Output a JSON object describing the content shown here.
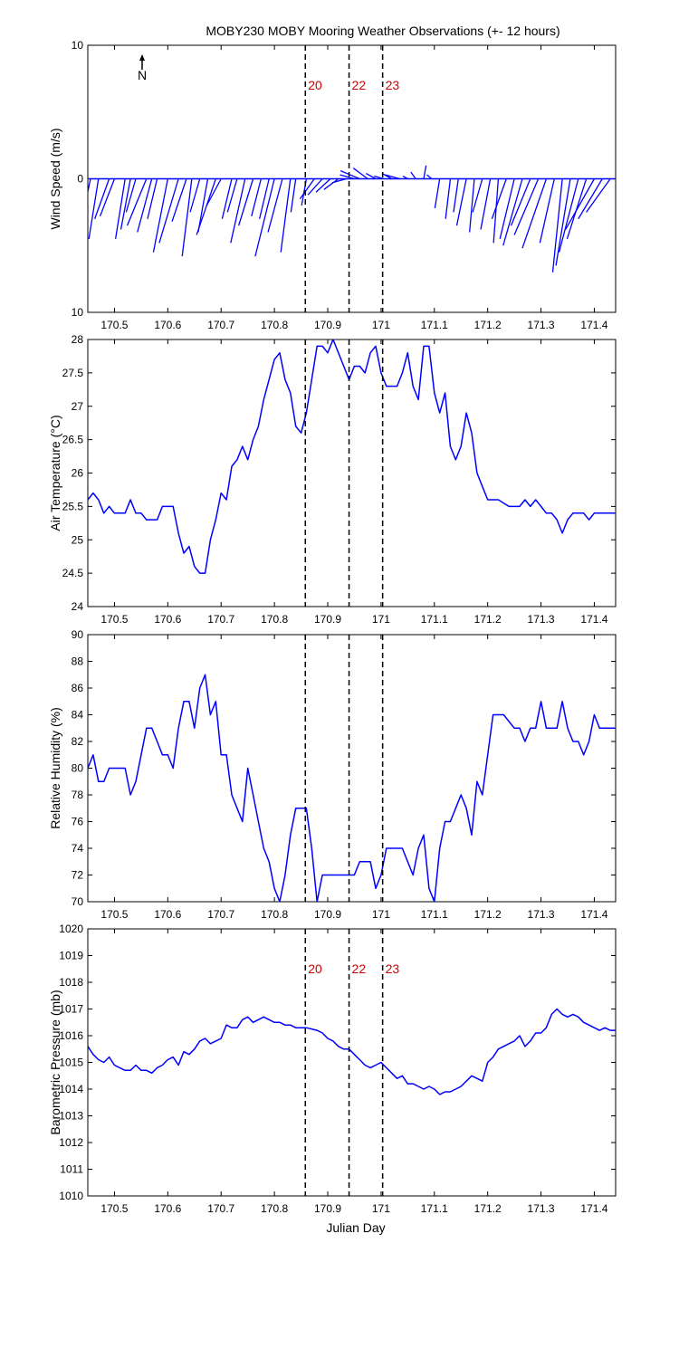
{
  "chart_data": {
    "title": "MOBY230 MOBY Mooring Weather Observations (+- 12 hours)",
    "xlabel": "Julian Day",
    "xlim": [
      170.45,
      171.44
    ],
    "xticks": [
      170.5,
      170.6,
      170.7,
      170.8,
      170.9,
      171,
      171.1,
      171.2,
      171.3,
      171.4
    ],
    "markers": [
      {
        "label": "20",
        "x": 170.858
      },
      {
        "label": "22",
        "x": 170.94
      },
      {
        "label": "23",
        "x": 171.003
      }
    ],
    "north_label": "N",
    "panels": [
      {
        "type": "quiver",
        "ylabel": "Wind Speed (m/s)",
        "ylim": [
          -10,
          10
        ],
        "yticks": [
          -10,
          0,
          10
        ],
        "ytick_labels": [
          "10",
          "0",
          "10"
        ],
        "show_markers": true,
        "series": [
          {
            "name": "",
            "color": "#0000ff",
            "x": [
              170.455,
              170.47,
              170.49,
              170.5,
              170.52,
              170.53,
              170.54,
              170.56,
              170.57,
              170.58,
              170.6,
              170.62,
              170.635,
              170.645,
              170.66,
              170.675,
              170.69,
              170.7,
              170.72,
              170.73,
              170.745,
              170.76,
              170.775,
              170.79,
              170.8,
              170.815,
              170.83,
              170.84,
              170.86,
              170.875,
              170.89,
              170.905,
              170.92,
              170.935,
              170.95,
              170.96,
              170.975,
              170.99,
              171.005,
              171.02,
              171.035,
              171.05,
              171.065,
              171.08,
              171.095,
              171.11,
              171.13,
              171.145,
              171.16,
              171.175,
              171.19,
              171.205,
              171.22,
              171.235,
              171.25,
              171.265,
              171.28,
              171.295,
              171.31,
              171.325,
              171.34,
              171.355,
              171.37,
              171.385,
              171.4,
              171.415,
              171.43
            ],
            "u": [
              -0.02,
              -0.02,
              -0.03,
              -0.03,
              -0.02,
              -0.02,
              -0.02,
              -0.04,
              -0.03,
              -0.02,
              -0.03,
              -0.04,
              -0.03,
              -0.02,
              -0.02,
              -0.02,
              -0.04,
              -0.03,
              -0.02,
              -0.02,
              -0.03,
              -0.03,
              -0.02,
              -0.02,
              -0.04,
              -0.03,
              -0.02,
              -0.01,
              -0.01,
              -0.03,
              -0.03,
              -0.03,
              -0.03,
              -0.03,
              -0.03,
              -0.04,
              -0.03,
              -0.02,
              -0.02,
              -0.02,
              -0.03,
              -0.01,
              -0.01,
              0.005,
              -0.01,
              -0.01,
              -0.01,
              -0.01,
              -0.02,
              -0.01,
              -0.02,
              -0.02,
              -0.01,
              -0.03,
              -0.03,
              -0.04,
              -0.04,
              -0.05,
              -0.05,
              -0.03,
              -0.02,
              -0.03,
              -0.04,
              -0.04,
              -0.06,
              -0.05,
              -0.05
            ],
            "v": [
              -3.5,
              -4.5,
              -3.0,
              -2.8,
              -4.5,
              -3.8,
              -2.5,
              -3.5,
              -4.0,
              -3.0,
              -5.5,
              -4.8,
              -3.2,
              -5.8,
              -2.5,
              -4.0,
              -4.2,
              -2.0,
              -3.0,
              -2.5,
              -4.8,
              -3.5,
              -2.8,
              -3.0,
              -5.8,
              -4.0,
              -5.5,
              -2.5,
              -2.0,
              -1.5,
              -1.2,
              -1.0,
              -0.8,
              -0.3,
              0.3,
              0.6,
              0.8,
              0.4,
              0.2,
              0.4,
              0.3,
              0.2,
              0.5,
              1.0,
              0.3,
              -2.2,
              -3.0,
              -2.5,
              -3.5,
              -4.0,
              -2.5,
              -3.8,
              -4.8,
              -3.0,
              -4.5,
              -5.0,
              -3.5,
              -4.2,
              -5.2,
              -4.8,
              -7.0,
              -6.5,
              -5.5,
              -4.5,
              -3.8,
              -3.0,
              -2.5
            ]
          }
        ]
      },
      {
        "type": "line",
        "ylabel": "Air Temperature (°C)",
        "ylim": [
          24,
          28
        ],
        "yticks": [
          24,
          24.5,
          25,
          25.5,
          26,
          26.5,
          27,
          27.5,
          28
        ],
        "show_markers": false,
        "series": [
          {
            "name": "",
            "color": "#0000ff",
            "x": [
              170.45,
              170.46,
              170.47,
              170.48,
              170.49,
              170.5,
              170.51,
              170.52,
              170.53,
              170.54,
              170.55,
              170.56,
              170.57,
              170.58,
              170.59,
              170.6,
              170.61,
              170.62,
              170.63,
              170.64,
              170.65,
              170.66,
              170.67,
              170.68,
              170.69,
              170.7,
              170.71,
              170.72,
              170.73,
              170.74,
              170.75,
              170.76,
              170.77,
              170.78,
              170.79,
              170.8,
              170.81,
              170.82,
              170.83,
              170.84,
              170.85,
              170.86,
              170.87,
              170.88,
              170.89,
              170.9,
              170.91,
              170.92,
              170.93,
              170.94,
              170.95,
              170.96,
              170.97,
              170.98,
              170.99,
              171,
              171.01,
              171.02,
              171.03,
              171.04,
              171.05,
              171.06,
              171.07,
              171.08,
              171.09,
              171.1,
              171.11,
              171.12,
              171.13,
              171.14,
              171.15,
              171.16,
              171.17,
              171.18,
              171.19,
              171.2,
              171.21,
              171.22,
              171.23,
              171.24,
              171.25,
              171.26,
              171.27,
              171.28,
              171.29,
              171.3,
              171.31,
              171.32,
              171.33,
              171.34,
              171.35,
              171.36,
              171.37,
              171.38,
              171.39,
              171.4,
              171.41,
              171.42,
              171.43,
              171.44
            ],
            "y": [
              25.6,
              25.7,
              25.6,
              25.4,
              25.5,
              25.4,
              25.4,
              25.4,
              25.6,
              25.4,
              25.4,
              25.3,
              25.3,
              25.3,
              25.5,
              25.5,
              25.5,
              25.1,
              24.8,
              24.9,
              24.6,
              24.5,
              24.5,
              25.0,
              25.3,
              25.7,
              25.6,
              26.1,
              26.2,
              26.4,
              26.2,
              26.5,
              26.7,
              27.1,
              27.4,
              27.7,
              27.8,
              27.4,
              27.2,
              26.7,
              26.6,
              26.9,
              27.4,
              27.9,
              27.9,
              27.8,
              28.0,
              27.8,
              27.6,
              27.4,
              27.6,
              27.6,
              27.5,
              27.8,
              27.9,
              27.5,
              27.3,
              27.3,
              27.3,
              27.5,
              27.8,
              27.3,
              27.1,
              27.9,
              27.9,
              27.2,
              26.9,
              27.2,
              26.4,
              26.2,
              26.4,
              26.9,
              26.6,
              26.0,
              25.8,
              25.6,
              25.6,
              25.6,
              25.55,
              25.5,
              25.5,
              25.5,
              25.6,
              25.5,
              25.6,
              25.5,
              25.4,
              25.4,
              25.3,
              25.1,
              25.3,
              25.4,
              25.4,
              25.4,
              25.3,
              25.4,
              25.4,
              25.4,
              25.4,
              25.4
            ]
          }
        ]
      },
      {
        "type": "line",
        "ylabel": "Relative Humidity (%)",
        "ylim": [
          70,
          90
        ],
        "yticks": [
          70,
          72,
          74,
          76,
          78,
          80,
          82,
          84,
          86,
          88,
          90
        ],
        "show_markers": false,
        "series": [
          {
            "name": "",
            "color": "#0000ff",
            "x": [
              170.45,
              170.46,
              170.47,
              170.48,
              170.49,
              170.5,
              170.51,
              170.52,
              170.53,
              170.54,
              170.55,
              170.56,
              170.57,
              170.58,
              170.59,
              170.6,
              170.61,
              170.62,
              170.63,
              170.64,
              170.65,
              170.66,
              170.67,
              170.68,
              170.69,
              170.7,
              170.71,
              170.72,
              170.73,
              170.74,
              170.75,
              170.76,
              170.77,
              170.78,
              170.79,
              170.8,
              170.81,
              170.82,
              170.83,
              170.84,
              170.85,
              170.86,
              170.87,
              170.88,
              170.89,
              170.9,
              170.91,
              170.92,
              170.93,
              170.94,
              170.95,
              170.96,
              170.97,
              170.98,
              170.99,
              171,
              171.01,
              171.02,
              171.03,
              171.04,
              171.05,
              171.06,
              171.07,
              171.08,
              171.09,
              171.1,
              171.11,
              171.12,
              171.13,
              171.14,
              171.15,
              171.16,
              171.17,
              171.18,
              171.19,
              171.2,
              171.21,
              171.22,
              171.23,
              171.24,
              171.25,
              171.26,
              171.27,
              171.28,
              171.29,
              171.3,
              171.31,
              171.32,
              171.33,
              171.34,
              171.35,
              171.36,
              171.37,
              171.38,
              171.39,
              171.4,
              171.41,
              171.42,
              171.43,
              171.44
            ],
            "y": [
              80,
              81,
              79,
              79,
              80,
              80,
              80,
              80,
              78,
              79,
              81,
              83,
              83,
              82,
              81,
              81,
              80,
              83,
              85,
              85,
              83,
              86,
              87,
              84,
              85,
              81,
              81,
              78,
              77,
              76,
              80,
              78,
              76,
              74,
              73,
              71,
              70,
              72,
              75,
              77,
              77,
              77,
              74,
              70,
              72,
              72,
              72,
              72,
              72,
              72,
              72,
              73,
              73,
              73,
              71,
              72,
              74,
              74,
              74,
              74,
              73,
              72,
              74,
              75,
              71,
              70,
              74,
              76,
              76,
              77,
              78,
              77,
              75,
              79,
              78,
              81,
              84,
              84,
              84,
              83.5,
              83,
              83,
              82,
              83,
              83,
              85,
              83,
              83,
              83,
              85,
              83,
              82,
              82,
              81,
              82,
              84,
              83,
              83,
              83,
              83
            ]
          }
        ]
      },
      {
        "type": "line",
        "ylabel": "Barometric Pressure (mb)",
        "ylim": [
          1010,
          1020
        ],
        "yticks": [
          1010,
          1011,
          1012,
          1013,
          1014,
          1015,
          1016,
          1017,
          1018,
          1019,
          1020
        ],
        "show_markers": true,
        "series": [
          {
            "name": "",
            "color": "#0000ff",
            "x": [
              170.45,
              170.46,
              170.47,
              170.48,
              170.49,
              170.5,
              170.51,
              170.52,
              170.53,
              170.54,
              170.55,
              170.56,
              170.57,
              170.58,
              170.59,
              170.6,
              170.61,
              170.62,
              170.63,
              170.64,
              170.65,
              170.66,
              170.67,
              170.68,
              170.69,
              170.7,
              170.71,
              170.72,
              170.73,
              170.74,
              170.75,
              170.76,
              170.77,
              170.78,
              170.79,
              170.8,
              170.81,
              170.82,
              170.83,
              170.84,
              170.85,
              170.86,
              170.87,
              170.88,
              170.89,
              170.9,
              170.91,
              170.92,
              170.93,
              170.94,
              170.95,
              170.96,
              170.97,
              170.98,
              170.99,
              171,
              171.01,
              171.02,
              171.03,
              171.04,
              171.05,
              171.06,
              171.07,
              171.08,
              171.09,
              171.1,
              171.11,
              171.12,
              171.13,
              171.14,
              171.15,
              171.16,
              171.17,
              171.18,
              171.19,
              171.2,
              171.21,
              171.22,
              171.23,
              171.24,
              171.25,
              171.26,
              171.27,
              171.28,
              171.29,
              171.3,
              171.31,
              171.32,
              171.33,
              171.34,
              171.35,
              171.36,
              171.37,
              171.38,
              171.39,
              171.4,
              171.41,
              171.42,
              171.43,
              171.44
            ],
            "y": [
              1015.6,
              1015.3,
              1015.1,
              1015.0,
              1015.2,
              1014.9,
              1014.8,
              1014.7,
              1014.7,
              1014.9,
              1014.7,
              1014.7,
              1014.6,
              1014.8,
              1014.9,
              1015.1,
              1015.2,
              1014.9,
              1015.4,
              1015.3,
              1015.5,
              1015.8,
              1015.9,
              1015.7,
              1015.8,
              1015.9,
              1016.4,
              1016.3,
              1016.3,
              1016.6,
              1016.7,
              1016.5,
              1016.6,
              1016.7,
              1016.6,
              1016.5,
              1016.5,
              1016.4,
              1016.4,
              1016.3,
              1016.3,
              1016.3,
              1016.25,
              1016.2,
              1016.1,
              1015.9,
              1015.8,
              1015.6,
              1015.5,
              1015.5,
              1015.3,
              1015.1,
              1014.9,
              1014.8,
              1014.9,
              1015.0,
              1014.8,
              1014.6,
              1014.4,
              1014.5,
              1014.2,
              1014.2,
              1014.1,
              1014.0,
              1014.1,
              1014.0,
              1013.8,
              1013.9,
              1013.9,
              1014.0,
              1014.1,
              1014.3,
              1014.5,
              1014.4,
              1014.3,
              1015.0,
              1015.2,
              1015.5,
              1015.6,
              1015.7,
              1015.8,
              1016.0,
              1015.6,
              1015.8,
              1016.1,
              1016.1,
              1016.3,
              1016.8,
              1017.0,
              1016.8,
              1016.7,
              1016.8,
              1016.7,
              1016.5,
              1016.4,
              1016.3,
              1016.2,
              1016.3,
              1016.2,
              1016.2
            ]
          }
        ]
      }
    ]
  }
}
